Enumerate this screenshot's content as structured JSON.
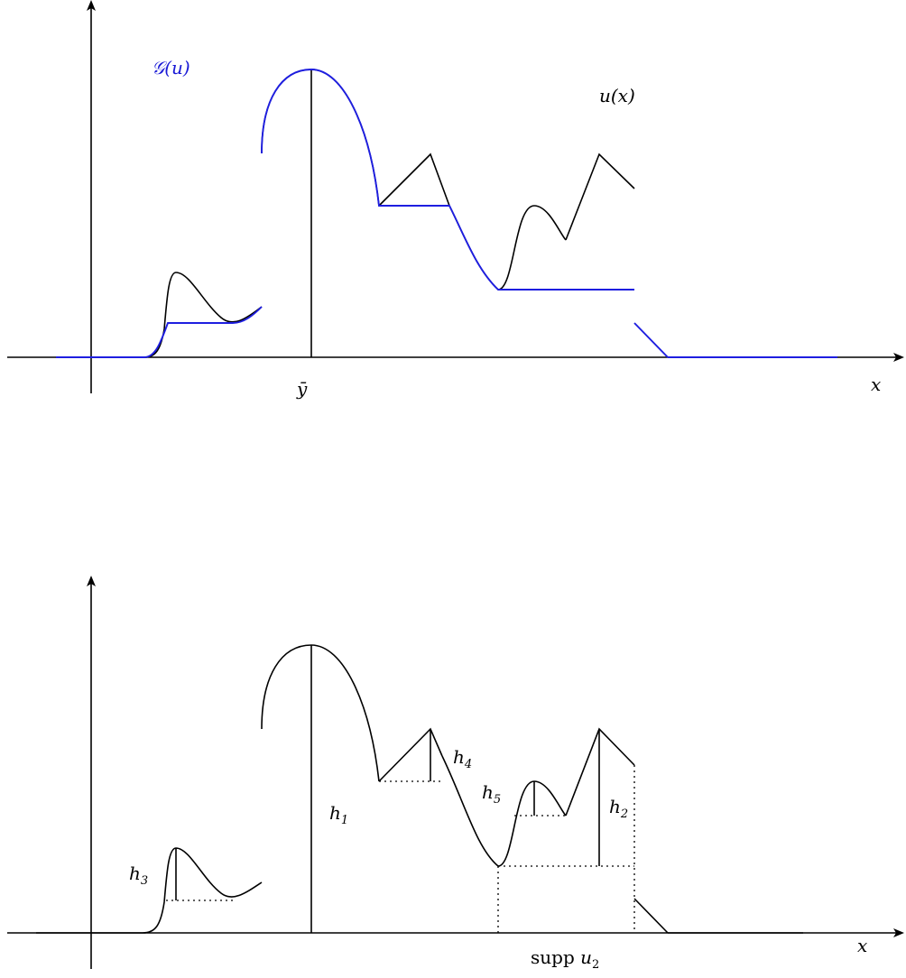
{
  "top_figure": {
    "gu_label": "𝒢(u)",
    "ux_label": "u(x)",
    "ybar_label": "ȳ",
    "x_axis_label": "x"
  },
  "bottom_figure": {
    "x_axis_label": "x",
    "h_labels": [
      {
        "main": "h",
        "sub": "1"
      },
      {
        "main": "h",
        "sub": "2"
      },
      {
        "main": "h",
        "sub": "3"
      },
      {
        "main": "h",
        "sub": "4"
      },
      {
        "main": "h",
        "sub": "5"
      }
    ],
    "supp_label": {
      "word": "supp ",
      "var": "u",
      "sub": "2"
    }
  },
  "colors": {
    "curve": "#000000",
    "envelope": "#1e1ee0"
  }
}
